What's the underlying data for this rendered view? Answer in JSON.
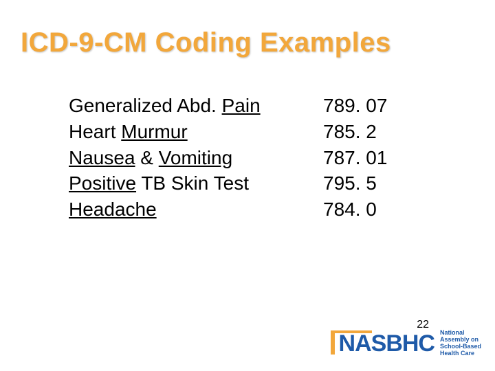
{
  "slide": {
    "title": "ICD-9-CM Coding Examples",
    "title_color": "#f2a73b",
    "title_fontsize": 40,
    "body_fontsize": 28,
    "body_color": "#000000",
    "background_color": "#ffffff",
    "page_number": "22",
    "rows": [
      {
        "prefix": "Generalized Abd. ",
        "underlined": "Pain",
        "suffix": "",
        "code": "789. 07"
      },
      {
        "prefix": "Heart ",
        "underlined": "Murmur",
        "suffix": "  ",
        "code": "785. 2"
      },
      {
        "prefix": "",
        "underlined": "Nausea",
        "suffix": " & ",
        "underlined2": "Vomiting",
        "suffix2": " ",
        "code": "787. 01"
      },
      {
        "prefix": "",
        "underlined": "Positive",
        "suffix": " TB Skin Test",
        "code": "795. 5"
      },
      {
        "prefix": "",
        "underlined": "Headache",
        "suffix": "",
        "code": "784. 0"
      }
    ]
  },
  "logo": {
    "mark": "NASBHC",
    "line1": "National",
    "line2": "Assembly on",
    "line3": "School-Based",
    "line4": "Health Care",
    "brand_blue": "#1e5aa8",
    "brand_orange": "#f2a73b"
  }
}
